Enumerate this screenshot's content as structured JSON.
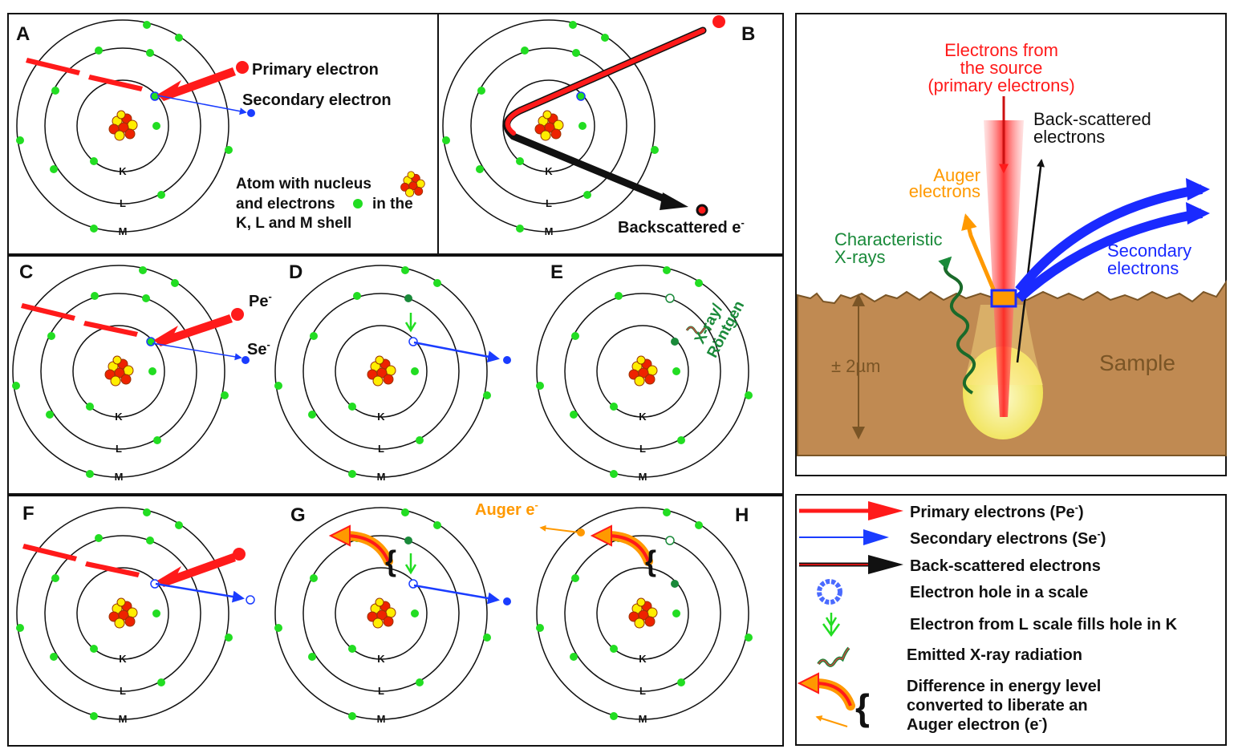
{
  "panels": {
    "A": {
      "letter": "A",
      "primary": "Primary electron",
      "secondary": "Secondary electron",
      "atom_line1": "Atom with nucleus",
      "atom_line2": "and electrons",
      "atom_line2b": "in the",
      "atom_line3": "K, L and M shell"
    },
    "B": {
      "letter": "B",
      "backscattered": "Backscattered e",
      "backscattered_sup": "-"
    },
    "C": {
      "letter": "C",
      "pe": "Pe",
      "se": "Se",
      "sup": "-"
    },
    "D": {
      "letter": "D"
    },
    "E": {
      "letter": "E",
      "xray1": "X-ray/",
      "xray2": "Röntgen"
    },
    "F": {
      "letter": "F"
    },
    "G": {
      "letter": "G",
      "auger": "Auger e",
      "auger_sup": "-"
    },
    "H": {
      "letter": "H"
    }
  },
  "shells": {
    "k": "K",
    "l": "L",
    "m": "M"
  },
  "sem": {
    "source_line1": "Electrons from",
    "source_line2": "the source",
    "source_line3": "(primary electrons)",
    "back_line1": "Back-scattered",
    "back_line2": "electrons",
    "auger_line1": "Auger",
    "auger_line2": "electrons",
    "xray_line1": "Characteristic",
    "xray_line2": "X-rays",
    "secondary_line1": "Secondary",
    "secondary_line2": "electrons",
    "depth": "± 2µm",
    "sample": "Sample"
  },
  "legend": {
    "primary": "Primary electrons (Pe",
    "secondary": "Secondary electrons (Se",
    "back": "Back-scattered electrons",
    "hole": "Electron hole in a scale",
    "fill": "Electron from L scale fills hole in K",
    "xray": "Emitted X-ray radiation",
    "diff1": "Difference in energy level",
    "diff2": "converted to liberate an",
    "diff3": "Auger electron (e",
    "sup": "-",
    "close": ")"
  },
  "colors": {
    "primary": "#ff1a1a",
    "secondary": "#1a3cff",
    "electron": "#22dd22",
    "auger": "#ff9900",
    "xray": "#1a8a3a",
    "sample": "#c08a52",
    "backscatter": "#111111"
  }
}
